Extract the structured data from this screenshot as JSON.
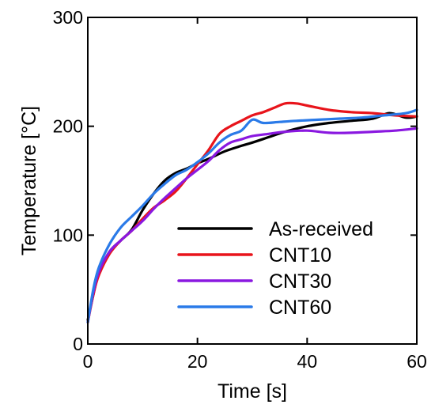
{
  "chart_data": {
    "type": "line",
    "title": "",
    "xlabel": "Time [s]",
    "ylabel": "Temperature [°C]",
    "xlim": [
      0,
      60
    ],
    "ylim": [
      0,
      300
    ],
    "xticks": [
      0,
      20,
      40,
      60
    ],
    "yticks": [
      0,
      100,
      200,
      300
    ],
    "xtick_labels": [
      "0",
      "20",
      "40",
      "60"
    ],
    "ytick_labels": [
      "0",
      "100",
      "200",
      "300"
    ],
    "grid": false,
    "legend_position": "lower-right",
    "series": [
      {
        "name": "As-received",
        "color": "#000000",
        "x": [
          0,
          1,
          2,
          4,
          6,
          8,
          10,
          12,
          14,
          16,
          18,
          20,
          22,
          25,
          28,
          30,
          33,
          36,
          40,
          44,
          48,
          52,
          55,
          58,
          60
        ],
        "y": [
          22,
          45,
          65,
          85,
          95,
          105,
          123,
          138,
          150,
          157,
          161,
          166,
          170,
          177,
          182,
          185,
          190,
          195,
          200,
          203,
          205,
          207,
          212,
          208,
          209
        ]
      },
      {
        "name": "CNT10",
        "color": "#e8141b",
        "x": [
          0,
          1,
          2,
          4,
          6,
          8,
          10,
          12,
          14,
          16,
          18,
          20,
          22,
          24,
          26,
          28,
          30,
          32,
          34,
          36,
          38,
          40,
          44,
          48,
          52,
          56,
          60
        ],
        "y": [
          20,
          45,
          63,
          83,
          95,
          104,
          115,
          125,
          132,
          140,
          152,
          165,
          178,
          193,
          200,
          205,
          210,
          213,
          217,
          221,
          221,
          219,
          215,
          213,
          212,
          210,
          209
        ]
      },
      {
        "name": "CNT30",
        "color": "#8a18e0",
        "x": [
          0,
          1,
          2,
          4,
          6,
          8,
          10,
          12,
          14,
          16,
          18,
          20,
          22,
          24,
          26,
          28,
          30,
          33,
          36,
          40,
          44,
          48,
          52,
          56,
          60
        ],
        "y": [
          20,
          47,
          66,
          85,
          95,
          104,
          113,
          124,
          134,
          143,
          152,
          160,
          168,
          178,
          185,
          188,
          191,
          193,
          195,
          196,
          194,
          194,
          195,
          196,
          198
        ]
      },
      {
        "name": "CNT60",
        "color": "#2a7ae8",
        "x": [
          0,
          1,
          2,
          4,
          6,
          8,
          10,
          12,
          14,
          16,
          18,
          20,
          22,
          24,
          26,
          28,
          30,
          32,
          35,
          38,
          42,
          46,
          50,
          54,
          58,
          60
        ],
        "y": [
          20,
          50,
          70,
          92,
          107,
          117,
          127,
          138,
          147,
          155,
          160,
          167,
          175,
          185,
          192,
          196,
          206,
          203,
          204,
          205,
          206,
          207,
          208,
          210,
          212,
          215
        ]
      }
    ]
  }
}
